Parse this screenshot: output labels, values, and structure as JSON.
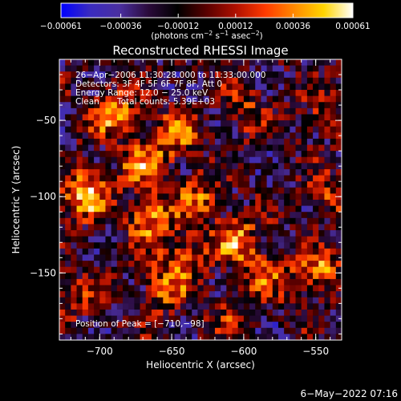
{
  "chart_data": {
    "type": "heatmap",
    "title": "Reconstructed RHESSI Image",
    "xlabel": "Heliocentric X (arcsec)",
    "ylabel": "Heliocentric Y (arcsec)",
    "xlim": [
      -728,
      -532
    ],
    "ylim": [
      -194,
      -10
    ],
    "x_ticks": [
      -700,
      -650,
      -600,
      -550
    ],
    "x_tick_labels": [
      "−700",
      "−650",
      "−600",
      "−550"
    ],
    "y_ticks": [
      -50,
      -100,
      -150
    ],
    "y_tick_labels": [
      "−50",
      "−100",
      "−150"
    ],
    "colorbar": {
      "range": [
        -0.00061,
        0.00061
      ],
      "ticks": [
        -0.00061,
        -0.00036,
        -0.00012,
        0.00012,
        0.00036,
        0.00061
      ],
      "tick_labels": [
        "−0.00061",
        "−0.00036",
        "−0.00012",
        "0.00012",
        "0.00036",
        "0.00061"
      ],
      "label_main": "(photons cm",
      "label_exp1": "−2",
      "label_mid1": " s",
      "label_exp2": "−1",
      "label_mid2": " asec",
      "label_exp3": "−2",
      "label_end": ")",
      "colors": [
        "#0000ff",
        "#3a2bbf",
        "#4a2fa0",
        "#2a0a3a",
        "#000000",
        "#5a0000",
        "#b01000",
        "#ff3a00",
        "#ff8a00",
        "#ffd400",
        "#ffffff"
      ]
    },
    "annotations": [
      "26−Apr−2006 11:30:28.000 to 11:33:00.000",
      "Detectors: 3F 4F 5F 6F 7F 8F, Att 0",
      "Energy Range: 12.0 − 25.0 keV",
      "Clean",
      "Total counts: 5.39E+03"
    ],
    "peak_label": "Position of Peak = [−710,−98]",
    "peak": [
      -710,
      -98
    ],
    "bright_regions": [
      {
        "x": -710,
        "y": -98,
        "value": 0.00061
      },
      {
        "x": -690,
        "y": -45,
        "value": 0.00048
      },
      {
        "x": -665,
        "y": -115,
        "value": 0.00052
      },
      {
        "x": -670,
        "y": -78,
        "value": 0.00044
      },
      {
        "x": -648,
        "y": -60,
        "value": 0.0004
      },
      {
        "x": -632,
        "y": -100,
        "value": 0.00036
      },
      {
        "x": -655,
        "y": -160,
        "value": 0.00038
      },
      {
        "x": -640,
        "y": -140,
        "value": 0.00032
      },
      {
        "x": -605,
        "y": -128,
        "value": 0.00042
      },
      {
        "x": -585,
        "y": -150,
        "value": 0.00034
      },
      {
        "x": -548,
        "y": -150,
        "value": 0.00046
      },
      {
        "x": -540,
        "y": -100,
        "value": 0.0003
      },
      {
        "x": -598,
        "y": -45,
        "value": 0.00026
      },
      {
        "x": -545,
        "y": -45,
        "value": 0.00022
      },
      {
        "x": -720,
        "y": -165,
        "value": 0.00024
      },
      {
        "x": -610,
        "y": -180,
        "value": 0.0002
      }
    ],
    "grid": false
  },
  "footer": {
    "date": "6−May−2022 07:16"
  }
}
